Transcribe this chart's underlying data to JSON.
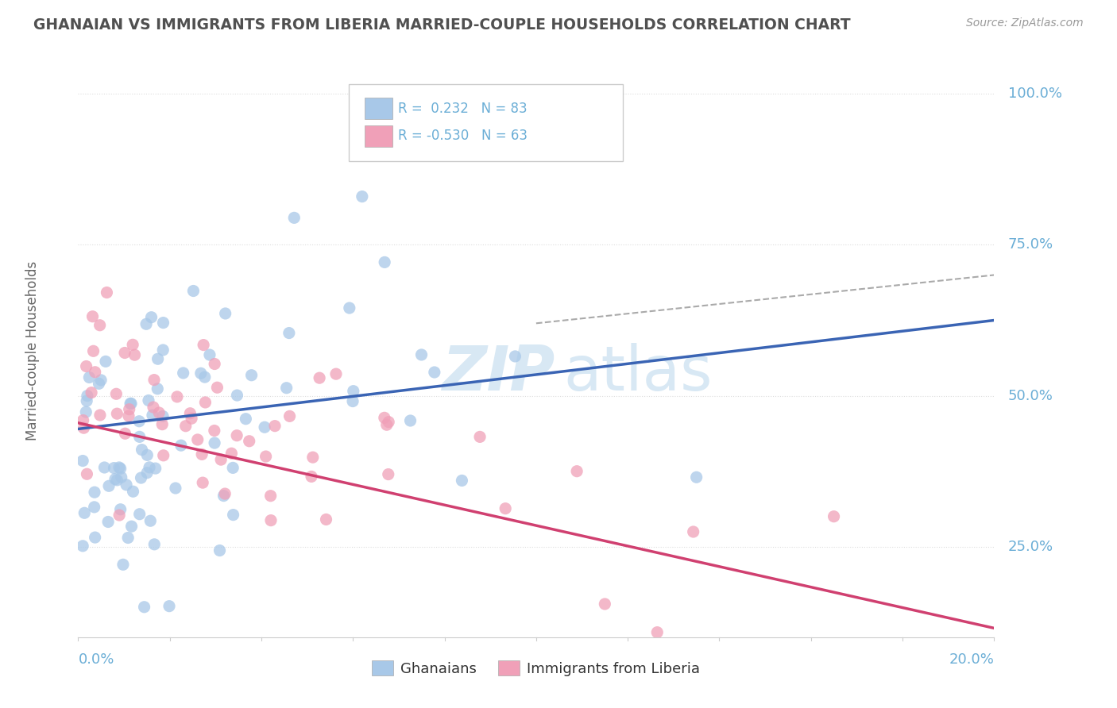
{
  "title": "GHANAIAN VS IMMIGRANTS FROM LIBERIA MARRIED-COUPLE HOUSEHOLDS CORRELATION CHART",
  "source": "Source: ZipAtlas.com",
  "ylabel_ticks": [
    "25.0%",
    "50.0%",
    "75.0%",
    "100.0%"
  ],
  "ylabel_values": [
    0.25,
    0.5,
    0.75,
    1.0
  ],
  "legend_labels": [
    "Ghanaians",
    "Immigrants from Liberia"
  ],
  "blue_color": "#A8C8E8",
  "pink_color": "#F0A0B8",
  "blue_line_color": "#3A64B4",
  "pink_line_color": "#D04070",
  "dashed_line_color": "#AAAAAA",
  "background_color": "#FFFFFF",
  "grid_color": "#DDDDDD",
  "title_color": "#505050",
  "axis_label_color": "#6BAED6",
  "watermark_color": "#D8E8F4",
  "R_blue": 0.232,
  "N_blue": 83,
  "R_pink": -0.53,
  "N_pink": 63,
  "x_min": 0.0,
  "x_max": 0.2,
  "y_min": 0.1,
  "y_max": 1.05,
  "blue_line_y0": 0.445,
  "blue_line_y1": 0.625,
  "pink_line_y0": 0.455,
  "pink_line_y1": 0.115
}
